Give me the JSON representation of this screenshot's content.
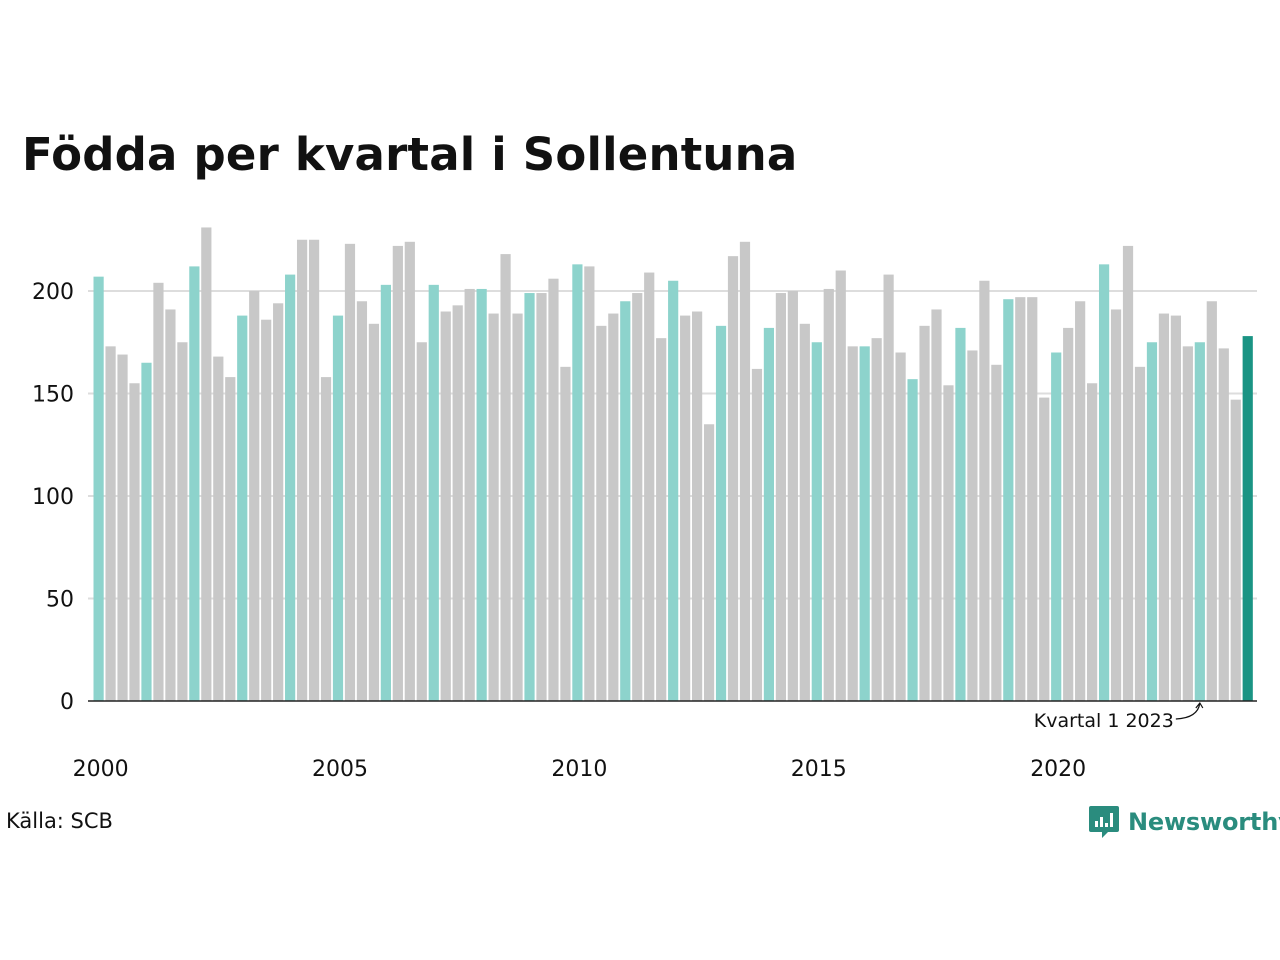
{
  "chart_data": {
    "type": "bar",
    "title": "Födda per kvartal i Sollentuna",
    "xlabel": "",
    "ylabel": "",
    "ylim": [
      0,
      225
    ],
    "y_ticks": [
      0,
      50,
      100,
      150,
      200
    ],
    "x_tick_labels": [
      "2000",
      "2005",
      "2010",
      "2015",
      "2020"
    ],
    "x_tick_years": [
      2000,
      2005,
      2010,
      2015,
      2020
    ],
    "start_year": 2000,
    "grid": true,
    "highlight_rule": "first quarter of each year highlighted; latest bar emphasized",
    "annotation": "Kvartal 1 2023",
    "values": [
      207,
      173,
      169,
      155,
      165,
      204,
      191,
      175,
      212,
      231,
      168,
      158,
      188,
      200,
      186,
      194,
      208,
      225,
      225,
      158,
      188,
      223,
      195,
      184,
      203,
      222,
      224,
      175,
      203,
      190,
      193,
      201,
      201,
      189,
      218,
      189,
      199,
      199,
      206,
      163,
      213,
      212,
      183,
      189,
      195,
      199,
      209,
      177,
      205,
      188,
      190,
      135,
      183,
      217,
      224,
      162,
      182,
      199,
      200,
      184,
      175,
      201,
      210,
      173,
      173,
      177,
      208,
      170,
      157,
      183,
      191,
      154,
      182,
      171,
      205,
      164,
      196,
      197,
      197,
      148,
      170,
      182,
      195,
      155,
      213,
      191,
      222,
      163,
      175,
      189,
      188,
      173,
      175,
      195,
      172,
      147,
      178
    ]
  },
  "source": "Källa: SCB",
  "brand": {
    "name": "Newsworthy"
  },
  "colors": {
    "highlight": "#8dd3cc",
    "normal": "#c8c8c8",
    "latest": "#1a9484",
    "grid": "#dddddd",
    "axis": "#222222",
    "brand": "#2a8c7e"
  }
}
